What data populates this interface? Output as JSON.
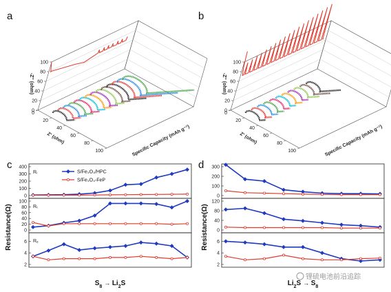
{
  "panels": {
    "a": "a",
    "b": "b",
    "c": "c",
    "d": "d"
  },
  "three_d": {
    "z_axis_label": "-Z'' (ohm)",
    "x_axis_label": "Z' (ohm)",
    "depth_axis_label": "Specific Capacity (mAh g⁻¹)",
    "z_ticks": [
      "0",
      "20",
      "40",
      "60",
      "80",
      "100"
    ],
    "x_ticks": [
      "0",
      "20",
      "40",
      "60",
      "80",
      "100"
    ]
  },
  "colors": {
    "blue_series": "#1f3bbf",
    "red_series": "#e03a2e",
    "curve_palette": [
      "#222222",
      "#e53935",
      "#1e88e5",
      "#43a047",
      "#e91e63",
      "#00bcd4",
      "#ff9800",
      "#9c27b0",
      "#8bc34a",
      "#6d4c41"
    ]
  },
  "legend": {
    "s1": "S/Fe₃O₄/HPC",
    "s2": "S/Fe₃O₄-FeP"
  },
  "resistance_label": "Resistance(Ω)",
  "watermark_text": "锂硫电池前沿追踪",
  "chart_data": [
    {
      "panel": "c",
      "type": "line",
      "xlabel_parts": [
        "S",
        "8",
        "→",
        "Li",
        "2",
        "S"
      ],
      "subplots": [
        {
          "label": "Rᵢ",
          "ylim": [
            0,
            400
          ],
          "yticks": [
            "0",
            "100",
            "200",
            "300",
            "400"
          ],
          "series": [
            {
              "name": "S/Fe₃O₄/HPC",
              "values": [
                8,
                10,
                12,
                20,
                35,
                70,
                150,
                160,
                250,
                300,
                360
              ]
            },
            {
              "name": "S/Fe₃O₄-FeP",
              "values": [
                5,
                5,
                6,
                6,
                8,
                10,
                12,
                14,
                16,
                18,
                20
              ]
            }
          ]
        },
        {
          "label": "Rₜ",
          "ylim": [
            0,
            100
          ],
          "yticks": [
            "0",
            "20",
            "40",
            "60",
            "80",
            "100"
          ],
          "series": [
            {
              "name": "S/Fe₃O₄/HPC",
              "values": [
                10,
                15,
                25,
                32,
                50,
                92,
                92,
                92,
                90,
                78,
                100
              ]
            },
            {
              "name": "S/Fe₃O₄-FeP",
              "values": [
                26,
                14,
                22,
                22,
                22,
                22,
                22,
                22,
                22,
                20,
                22
              ]
            }
          ]
        },
        {
          "label": "Rₑ",
          "ylim": [
            2,
            7
          ],
          "yticks": [
            "2",
            "4",
            "6"
          ],
          "series": [
            {
              "name": "S/Fe₃O₄/HPC",
              "values": [
                3.4,
                4.4,
                5.5,
                4.5,
                4.8,
                5.0,
                5.2,
                5.8,
                5.6,
                5.2,
                3.2
              ]
            },
            {
              "name": "S/Fe₃O₄-FeP",
              "values": [
                3.4,
                2.8,
                3.0,
                3.0,
                3.0,
                3.2,
                3.2,
                3.4,
                3.2,
                3.0,
                3.2
              ]
            }
          ]
        }
      ]
    },
    {
      "panel": "d",
      "type": "line",
      "xlabel_parts": [
        "Li",
        "2",
        "S",
        "→",
        "S",
        "8"
      ],
      "subplots": [
        {
          "label": "",
          "ylim": [
            0,
            300
          ],
          "yticks": [
            "0",
            "100",
            "200",
            "300"
          ],
          "series": [
            {
              "name": "S/Fe₃O₄/HPC",
              "values": [
                320,
                170,
                150,
                60,
                40,
                25,
                20,
                20,
                18
              ]
            },
            {
              "name": "S/Fe₃O₄-FeP",
              "values": [
                50,
                30,
                25,
                20,
                15,
                12,
                10,
                10,
                10
              ]
            }
          ]
        },
        {
          "label": "",
          "ylim": [
            0,
            120
          ],
          "yticks": [
            "0",
            "40",
            "80",
            "120"
          ],
          "series": [
            {
              "name": "S/Fe₃O₄/HPC",
              "values": [
                85,
                90,
                70,
                45,
                38,
                30,
                22,
                18,
                12
              ]
            },
            {
              "name": "S/Fe₃O₄-FeP",
              "values": [
                12,
                10,
                10,
                10,
                10,
                10,
                8,
                8,
                8
              ]
            }
          ]
        },
        {
          "label": "",
          "ylim": [
            2,
            7
          ],
          "yticks": [
            "2",
            "4",
            "6"
          ],
          "series": [
            {
              "name": "S/Fe₃O₄/HPC",
              "values": [
                6.0,
                5.8,
                5.5,
                5.0,
                5.0,
                4.0,
                3.0,
                2.6,
                2.8
              ]
            },
            {
              "name": "S/Fe₃O₄-FeP",
              "values": [
                3.4,
                2.8,
                3.0,
                3.6,
                3.0,
                2.8,
                2.8,
                3.0,
                3.1
              ]
            }
          ]
        }
      ]
    }
  ]
}
